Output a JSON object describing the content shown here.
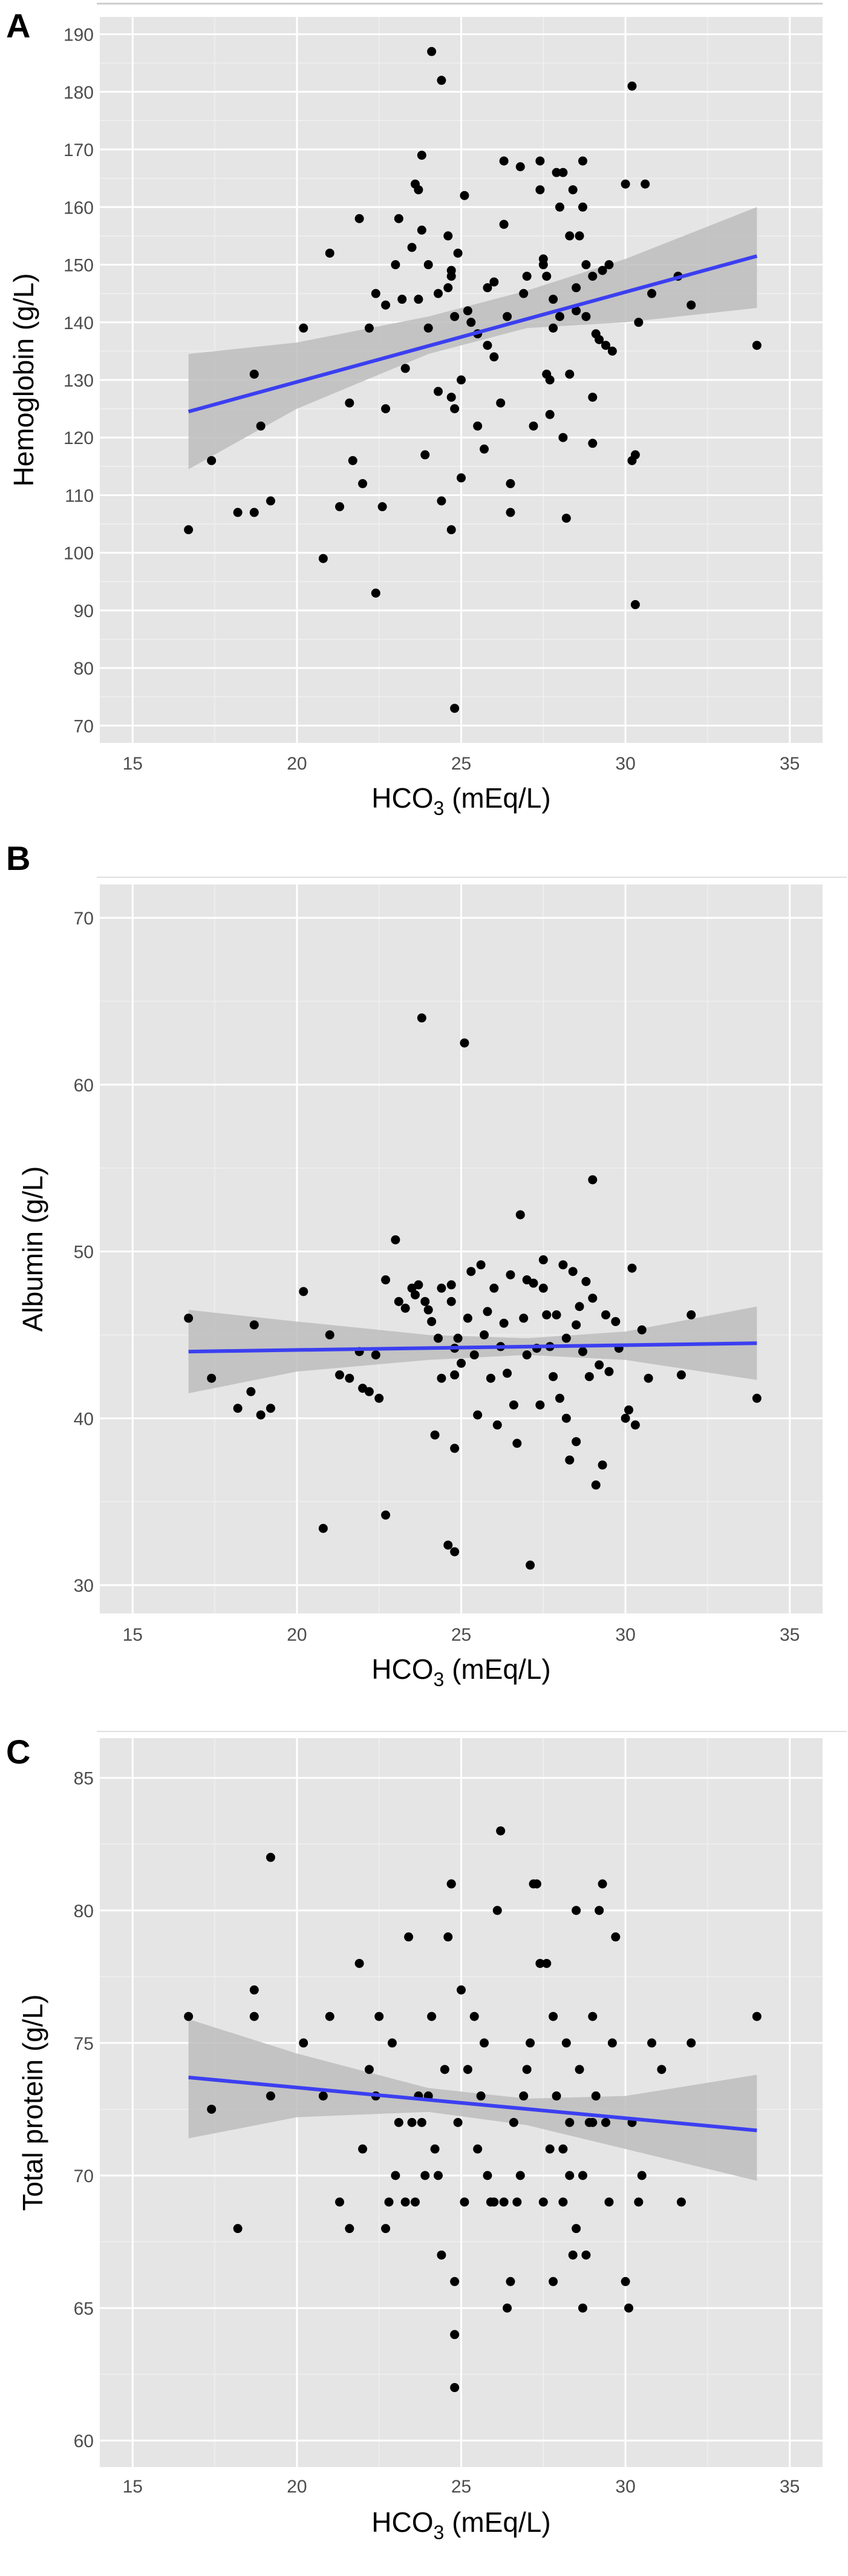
{
  "theme": {
    "panel_bg": "#e5e5e5",
    "grid_major": "#ffffff",
    "grid_minor": "#f0f0f0",
    "point_color": "#000000",
    "line_color": "#3b3ff0",
    "band_color": "#bdbdbd",
    "tick_color": "#4d4d4d"
  },
  "chart_data": [
    {
      "panel": "A",
      "type": "scatter",
      "xlabel_main": "HCO",
      "xlabel_sub": "3",
      "xlabel_units": " (mEq/L)",
      "ylabel": "Hemoglobin (g/L)",
      "xlim": [
        14,
        36
      ],
      "ylim": [
        67,
        193
      ],
      "x_ticks": [
        15,
        20,
        25,
        30,
        35
      ],
      "y_ticks": [
        70,
        80,
        90,
        100,
        110,
        120,
        130,
        140,
        150,
        160,
        170,
        180,
        190
      ],
      "grid": true,
      "fit": {
        "x": [
          16.7,
          34
        ],
        "y": [
          124.5,
          151.5
        ]
      },
      "band": {
        "x": [
          16.7,
          20,
          24,
          27,
          30,
          34
        ],
        "lower": [
          114.5,
          125,
          134.5,
          139,
          140,
          142.5
        ],
        "upper": [
          134.5,
          136.5,
          141,
          145.5,
          151,
          160
        ]
      },
      "points": [
        [
          16.7,
          104
        ],
        [
          17.4,
          116
        ],
        [
          18.2,
          107
        ],
        [
          18.7,
          107
        ],
        [
          18.7,
          131
        ],
        [
          18.9,
          122
        ],
        [
          19.2,
          109
        ],
        [
          20.2,
          139
        ],
        [
          20.8,
          99
        ],
        [
          21,
          152
        ],
        [
          21.3,
          108
        ],
        [
          21.6,
          126
        ],
        [
          21.7,
          116
        ],
        [
          21.9,
          158
        ],
        [
          22,
          112
        ],
        [
          22.2,
          139
        ],
        [
          22.4,
          145
        ],
        [
          22.4,
          93
        ],
        [
          22.6,
          108
        ],
        [
          22.7,
          125
        ],
        [
          22.7,
          143
        ],
        [
          23,
          150
        ],
        [
          23.1,
          158
        ],
        [
          23.2,
          144
        ],
        [
          23.3,
          132
        ],
        [
          23.5,
          153
        ],
        [
          23.6,
          164
        ],
        [
          23.7,
          144
        ],
        [
          23.7,
          163
        ],
        [
          23.8,
          169
        ],
        [
          23.8,
          156
        ],
        [
          23.9,
          117
        ],
        [
          24,
          139
        ],
        [
          24,
          150
        ],
        [
          24.1,
          187
        ],
        [
          24.3,
          128
        ],
        [
          24.3,
          145
        ],
        [
          24.4,
          109
        ],
        [
          24.4,
          182
        ],
        [
          24.6,
          155
        ],
        [
          24.6,
          146
        ],
        [
          24.7,
          148
        ],
        [
          24.7,
          149
        ],
        [
          24.7,
          127
        ],
        [
          24.7,
          104
        ],
        [
          24.8,
          73
        ],
        [
          24.8,
          141
        ],
        [
          24.8,
          125
        ],
        [
          24.9,
          152
        ],
        [
          25,
          130
        ],
        [
          25,
          113
        ],
        [
          25.1,
          162
        ],
        [
          25.2,
          142
        ],
        [
          25.3,
          140
        ],
        [
          25.5,
          122
        ],
        [
          25.5,
          138
        ],
        [
          25.7,
          118
        ],
        [
          25.8,
          146
        ],
        [
          25.8,
          136
        ],
        [
          26,
          147
        ],
        [
          26,
          134
        ],
        [
          26.2,
          126
        ],
        [
          26.3,
          168
        ],
        [
          26.3,
          157
        ],
        [
          26.4,
          141
        ],
        [
          26.5,
          107
        ],
        [
          26.5,
          112
        ],
        [
          26.8,
          167
        ],
        [
          26.9,
          145
        ],
        [
          27,
          148
        ],
        [
          27.2,
          122
        ],
        [
          27.4,
          163
        ],
        [
          27.4,
          168
        ],
        [
          27.5,
          150
        ],
        [
          27.5,
          151
        ],
        [
          27.6,
          148
        ],
        [
          27.6,
          131
        ],
        [
          27.7,
          130
        ],
        [
          27.7,
          124
        ],
        [
          27.8,
          144
        ],
        [
          27.8,
          139
        ],
        [
          27.9,
          166
        ],
        [
          28,
          141
        ],
        [
          28,
          160
        ],
        [
          28.1,
          166
        ],
        [
          28.1,
          120
        ],
        [
          28.2,
          106
        ],
        [
          28.3,
          155
        ],
        [
          28.3,
          131
        ],
        [
          28.4,
          163
        ],
        [
          28.5,
          146
        ],
        [
          28.5,
          142
        ],
        [
          28.6,
          155
        ],
        [
          28.7,
          160
        ],
        [
          28.7,
          168
        ],
        [
          28.8,
          150
        ],
        [
          28.8,
          141
        ],
        [
          29,
          127
        ],
        [
          29,
          148
        ],
        [
          29,
          119
        ],
        [
          29.1,
          138
        ],
        [
          29.2,
          137
        ],
        [
          29.3,
          149
        ],
        [
          29.4,
          136
        ],
        [
          29.5,
          150
        ],
        [
          29.6,
          135
        ],
        [
          30,
          164
        ],
        [
          30.2,
          181
        ],
        [
          30.2,
          116
        ],
        [
          30.3,
          117
        ],
        [
          30.3,
          91
        ],
        [
          30.4,
          140
        ],
        [
          30.6,
          164
        ],
        [
          30.8,
          145
        ],
        [
          31.6,
          148
        ],
        [
          32,
          143
        ],
        [
          34,
          136
        ]
      ]
    },
    {
      "panel": "B",
      "type": "scatter",
      "xlabel_main": "HCO",
      "xlabel_sub": "3",
      "xlabel_units": " (mEq/L)",
      "ylabel": "Albumin (g/L)",
      "xlim": [
        14,
        36
      ],
      "ylim": [
        28.3,
        72
      ],
      "x_ticks": [
        15,
        20,
        25,
        30,
        35
      ],
      "y_ticks": [
        30,
        40,
        50,
        60,
        70
      ],
      "grid": true,
      "fit": {
        "x": [
          16.7,
          34
        ],
        "y": [
          44,
          44.5
        ]
      },
      "band": {
        "x": [
          16.7,
          20,
          24,
          27,
          30,
          34
        ],
        "lower": [
          41.5,
          42.8,
          43.5,
          43.8,
          43.5,
          42.3
        ],
        "upper": [
          46.5,
          45.8,
          45,
          44.8,
          45.2,
          46.7
        ]
      },
      "points": [
        [
          16.7,
          46
        ],
        [
          17.4,
          42.4
        ],
        [
          18.2,
          40.6
        ],
        [
          18.6,
          41.6
        ],
        [
          18.7,
          45.6
        ],
        [
          18.9,
          40.2
        ],
        [
          19.2,
          40.6
        ],
        [
          20.2,
          47.6
        ],
        [
          20.8,
          33.4
        ],
        [
          21,
          45
        ],
        [
          21.3,
          42.6
        ],
        [
          21.6,
          42.4
        ],
        [
          21.9,
          44
        ],
        [
          22,
          41.8
        ],
        [
          22.2,
          41.6
        ],
        [
          22.4,
          43.8
        ],
        [
          22.5,
          41.2
        ],
        [
          22.7,
          34.2
        ],
        [
          22.7,
          48.3
        ],
        [
          23,
          50.7
        ],
        [
          23.1,
          47
        ],
        [
          23.3,
          46.6
        ],
        [
          23.5,
          47.8
        ],
        [
          23.6,
          47.4
        ],
        [
          23.7,
          48
        ],
        [
          23.8,
          64
        ],
        [
          23.9,
          47
        ],
        [
          24,
          46.5
        ],
        [
          24.1,
          45.8
        ],
        [
          24.2,
          39
        ],
        [
          24.3,
          44.8
        ],
        [
          24.4,
          47.8
        ],
        [
          24.4,
          42.4
        ],
        [
          24.6,
          32.4
        ],
        [
          24.7,
          47
        ],
        [
          24.7,
          48
        ],
        [
          24.8,
          44.2
        ],
        [
          24.8,
          42.6
        ],
        [
          24.8,
          38.2
        ],
        [
          24.8,
          32
        ],
        [
          24.9,
          44.8
        ],
        [
          25,
          43.3
        ],
        [
          25.1,
          62.5
        ],
        [
          25.2,
          46
        ],
        [
          25.3,
          48.8
        ],
        [
          25.4,
          43.8
        ],
        [
          25.5,
          40.2
        ],
        [
          25.6,
          49.2
        ],
        [
          25.7,
          45
        ],
        [
          25.8,
          46.4
        ],
        [
          25.9,
          42.4
        ],
        [
          26,
          47.8
        ],
        [
          26.1,
          39.6
        ],
        [
          26.2,
          44.3
        ],
        [
          26.3,
          45.7
        ],
        [
          26.4,
          42.7
        ],
        [
          26.5,
          48.6
        ],
        [
          26.6,
          40.8
        ],
        [
          26.7,
          38.5
        ],
        [
          26.8,
          52.2
        ],
        [
          26.9,
          46
        ],
        [
          27,
          48.3
        ],
        [
          27,
          43.8
        ],
        [
          27.1,
          31.2
        ],
        [
          27.2,
          48.1
        ],
        [
          27.3,
          44.2
        ],
        [
          27.4,
          40.8
        ],
        [
          27.5,
          49.5
        ],
        [
          27.5,
          47.8
        ],
        [
          27.6,
          46.2
        ],
        [
          27.7,
          44.3
        ],
        [
          27.8,
          42.5
        ],
        [
          27.9,
          46.2
        ],
        [
          28,
          41.2
        ],
        [
          28.1,
          49.2
        ],
        [
          28.2,
          44.8
        ],
        [
          28.2,
          40
        ],
        [
          28.3,
          37.5
        ],
        [
          28.4,
          48.8
        ],
        [
          28.5,
          38.6
        ],
        [
          28.5,
          45.6
        ],
        [
          28.6,
          46.7
        ],
        [
          28.7,
          44
        ],
        [
          28.8,
          48.2
        ],
        [
          28.9,
          42.5
        ],
        [
          29,
          54.3
        ],
        [
          29,
          47.2
        ],
        [
          29.1,
          36
        ],
        [
          29.2,
          43.2
        ],
        [
          29.3,
          37.2
        ],
        [
          29.4,
          46.2
        ],
        [
          29.5,
          42.8
        ],
        [
          29.7,
          45.8
        ],
        [
          29.8,
          44.2
        ],
        [
          30,
          40
        ],
        [
          30.1,
          40.5
        ],
        [
          30.2,
          49
        ],
        [
          30.3,
          39.6
        ],
        [
          30.5,
          45.3
        ],
        [
          30.7,
          42.4
        ],
        [
          31.7,
          42.6
        ],
        [
          32,
          46.2
        ],
        [
          34,
          41.2
        ]
      ]
    },
    {
      "panel": "C",
      "type": "scatter",
      "xlabel_main": "HCO",
      "xlabel_sub": "3",
      "xlabel_units": " (mEq/L)",
      "ylabel": "Total protein (g/L)",
      "xlim": [
        14,
        36
      ],
      "ylim": [
        59,
        86.5
      ],
      "x_ticks": [
        15,
        20,
        25,
        30,
        35
      ],
      "y_ticks": [
        60,
        65,
        70,
        75,
        80,
        85
      ],
      "grid": true,
      "fit": {
        "x": [
          16.7,
          34
        ],
        "y": [
          73.7,
          71.7
        ]
      },
      "band": {
        "x": [
          16.7,
          20,
          24,
          27,
          30,
          34
        ],
        "lower": [
          71.4,
          72.2,
          72.4,
          71.9,
          71,
          69.8
        ],
        "upper": [
          75.9,
          74.6,
          73.3,
          72.9,
          73,
          73.8
        ]
      },
      "points": [
        [
          16.7,
          76
        ],
        [
          17.4,
          72.5
        ],
        [
          18.2,
          68
        ],
        [
          18.7,
          76
        ],
        [
          18.7,
          77
        ],
        [
          19.2,
          73
        ],
        [
          19.2,
          82
        ],
        [
          20.2,
          75
        ],
        [
          20.8,
          73
        ],
        [
          21,
          76
        ],
        [
          21.3,
          69
        ],
        [
          21.6,
          68
        ],
        [
          21.9,
          78
        ],
        [
          22,
          71
        ],
        [
          22.2,
          74
        ],
        [
          22.4,
          73
        ],
        [
          22.5,
          76
        ],
        [
          22.7,
          68
        ],
        [
          22.8,
          69
        ],
        [
          22.9,
          75
        ],
        [
          23,
          70
        ],
        [
          23.1,
          72
        ],
        [
          23.3,
          69
        ],
        [
          23.4,
          79
        ],
        [
          23.5,
          72
        ],
        [
          23.6,
          69
        ],
        [
          23.7,
          73
        ],
        [
          23.8,
          72
        ],
        [
          23.9,
          70
        ],
        [
          24,
          73
        ],
        [
          24.1,
          76
        ],
        [
          24.2,
          71
        ],
        [
          24.3,
          70
        ],
        [
          24.4,
          67
        ],
        [
          24.5,
          74
        ],
        [
          24.6,
          79
        ],
        [
          24.7,
          81
        ],
        [
          24.7,
          81
        ],
        [
          24.8,
          62
        ],
        [
          24.8,
          64
        ],
        [
          24.8,
          66
        ],
        [
          24.9,
          72
        ],
        [
          25,
          77
        ],
        [
          25.1,
          69
        ],
        [
          25.2,
          74
        ],
        [
          25.4,
          76
        ],
        [
          25.5,
          71
        ],
        [
          25.6,
          73
        ],
        [
          25.7,
          75
        ],
        [
          25.8,
          70
        ],
        [
          25.9,
          69
        ],
        [
          26,
          69
        ],
        [
          26.1,
          80
        ],
        [
          26.2,
          83
        ],
        [
          26.3,
          69
        ],
        [
          26.4,
          65
        ],
        [
          26.5,
          66
        ],
        [
          26.6,
          72
        ],
        [
          26.7,
          69
        ],
        [
          26.8,
          70
        ],
        [
          26.9,
          73
        ],
        [
          27,
          74
        ],
        [
          27.1,
          75
        ],
        [
          27.2,
          81
        ],
        [
          27.3,
          81
        ],
        [
          27.4,
          78
        ],
        [
          27.5,
          69
        ],
        [
          27.6,
          78
        ],
        [
          27.7,
          71
        ],
        [
          27.8,
          66
        ],
        [
          27.8,
          76
        ],
        [
          27.9,
          73
        ],
        [
          28.1,
          69
        ],
        [
          28.1,
          71
        ],
        [
          28.2,
          75
        ],
        [
          28.3,
          70
        ],
        [
          28.3,
          72
        ],
        [
          28.4,
          67
        ],
        [
          28.5,
          68
        ],
        [
          28.5,
          80
        ],
        [
          28.6,
          74
        ],
        [
          28.7,
          65
        ],
        [
          28.7,
          70
        ],
        [
          28.8,
          67
        ],
        [
          28.9,
          72
        ],
        [
          29,
          76
        ],
        [
          29,
          72
        ],
        [
          29.1,
          73
        ],
        [
          29.2,
          80
        ],
        [
          29.3,
          81
        ],
        [
          29.4,
          72
        ],
        [
          29.5,
          69
        ],
        [
          29.6,
          75
        ],
        [
          29.7,
          79
        ],
        [
          30,
          66
        ],
        [
          30.1,
          65
        ],
        [
          30.2,
          72
        ],
        [
          30.4,
          69
        ],
        [
          30.5,
          70
        ],
        [
          30.8,
          75
        ],
        [
          31.1,
          74
        ],
        [
          31.7,
          69
        ],
        [
          32,
          75
        ],
        [
          34,
          76
        ]
      ]
    }
  ]
}
